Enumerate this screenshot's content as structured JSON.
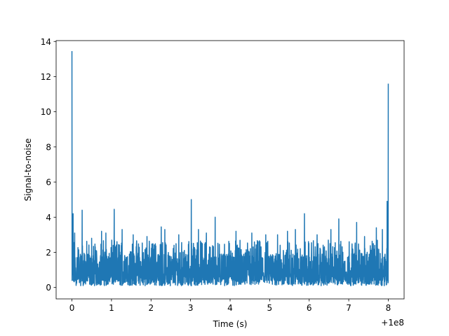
{
  "chart_data": {
    "type": "line",
    "title": "",
    "xlabel": "Time (s)",
    "ylabel": "Signal-to-noise",
    "x_offset_label": "+1e8",
    "xlim": [
      -0.4,
      8.4
    ],
    "ylim": [
      -0.65,
      14.05
    ],
    "xticks": [
      0,
      1,
      2,
      3,
      4,
      5,
      6,
      7,
      8
    ],
    "xtick_labels": [
      "0",
      "1",
      "2",
      "3",
      "4",
      "5",
      "6",
      "7",
      "8"
    ],
    "yticks": [
      0,
      2,
      4,
      6,
      8,
      10,
      12,
      14
    ],
    "ytick_labels": [
      "0",
      "2",
      "4",
      "6",
      "8",
      "10",
      "12",
      "14"
    ],
    "grid": false,
    "legend": "none",
    "series": [
      {
        "color": "#1f77b4",
        "peaks": [
          {
            "x": 0.0,
            "y": 13.45
          },
          {
            "x": 0.03,
            "y": 4.2
          },
          {
            "x": 0.07,
            "y": 3.1
          },
          {
            "x": 0.26,
            "y": 4.4
          },
          {
            "x": 0.5,
            "y": 2.8
          },
          {
            "x": 0.75,
            "y": 3.2
          },
          {
            "x": 0.86,
            "y": 3.1
          },
          {
            "x": 1.07,
            "y": 4.45
          },
          {
            "x": 1.27,
            "y": 3.3
          },
          {
            "x": 1.55,
            "y": 3.0
          },
          {
            "x": 1.9,
            "y": 2.9
          },
          {
            "x": 2.26,
            "y": 3.45
          },
          {
            "x": 2.35,
            "y": 3.3
          },
          {
            "x": 2.7,
            "y": 3.0
          },
          {
            "x": 3.02,
            "y": 5.0
          },
          {
            "x": 3.2,
            "y": 3.3
          },
          {
            "x": 3.4,
            "y": 3.1
          },
          {
            "x": 3.62,
            "y": 4.0
          },
          {
            "x": 4.15,
            "y": 3.2
          },
          {
            "x": 4.55,
            "y": 3.1
          },
          {
            "x": 4.9,
            "y": 3.0
          },
          {
            "x": 5.2,
            "y": 3.0
          },
          {
            "x": 5.45,
            "y": 3.2
          },
          {
            "x": 5.65,
            "y": 3.3
          },
          {
            "x": 5.88,
            "y": 4.2
          },
          {
            "x": 6.2,
            "y": 3.0
          },
          {
            "x": 6.55,
            "y": 3.3
          },
          {
            "x": 6.75,
            "y": 3.9
          },
          {
            "x": 7.2,
            "y": 3.7
          },
          {
            "x": 7.4,
            "y": 2.9
          },
          {
            "x": 7.7,
            "y": 3.4
          },
          {
            "x": 7.85,
            "y": 3.3
          },
          {
            "x": 7.97,
            "y": 4.9
          },
          {
            "x": 8.0,
            "y": 11.6
          }
        ]
      }
    ]
  }
}
